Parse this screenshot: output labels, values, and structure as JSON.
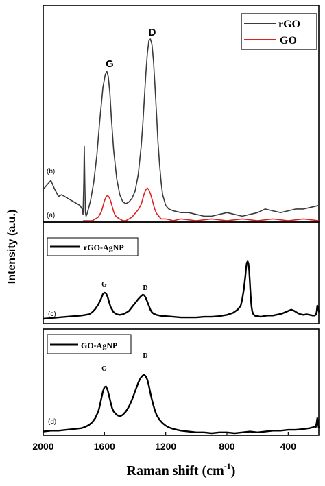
{
  "chart_data": [
    {
      "type": "line",
      "panel": "top",
      "xlim": [
        2000,
        200
      ],
      "xreversed": true,
      "legend": {
        "placement": "top-right",
        "entries": [
          "rGO",
          "GO"
        ]
      },
      "peak_labels": [
        "G",
        "D"
      ],
      "curve_labels": [
        "(b)",
        "(a)"
      ],
      "series": [
        {
          "name": "rGO",
          "color": "#3a3a3a",
          "x": [
            2000,
            1970,
            1950,
            1930,
            1900,
            1880,
            1860,
            1840,
            1820,
            1800,
            1780,
            1760,
            1745,
            1740,
            1735,
            1732,
            1728,
            1724,
            1720,
            1715,
            1705,
            1690,
            1670,
            1650,
            1630,
            1610,
            1595,
            1585,
            1575,
            1565,
            1555,
            1540,
            1520,
            1500,
            1480,
            1460,
            1440,
            1420,
            1400,
            1380,
            1360,
            1350,
            1340,
            1330,
            1320,
            1310,
            1300,
            1290,
            1280,
            1270,
            1260,
            1250,
            1240,
            1230,
            1220,
            1200,
            1180,
            1150,
            1100,
            1050,
            1000,
            950,
            900,
            850,
            800,
            750,
            700,
            650,
            600,
            550,
            500,
            450,
            400,
            350,
            300,
            250,
            200
          ],
          "y": [
            0.16,
            0.19,
            0.21,
            0.17,
            0.12,
            0.13,
            0.12,
            0.11,
            0.1,
            0.09,
            0.08,
            0.07,
            0.05,
            0.02,
            0.2,
            0.4,
            0.2,
            0.03,
            0.01,
            0.02,
            0.05,
            0.1,
            0.2,
            0.35,
            0.55,
            0.73,
            0.8,
            0.82,
            0.79,
            0.7,
            0.56,
            0.38,
            0.22,
            0.13,
            0.09,
            0.08,
            0.09,
            0.11,
            0.15,
            0.24,
            0.4,
            0.52,
            0.66,
            0.8,
            0.92,
            0.99,
            1.0,
            0.97,
            0.88,
            0.74,
            0.58,
            0.42,
            0.3,
            0.2,
            0.13,
            0.07,
            0.05,
            0.04,
            0.03,
            0.03,
            0.02,
            0.01,
            0.01,
            0.02,
            0.03,
            0.02,
            0.01,
            0.02,
            0.03,
            0.05,
            0.04,
            0.03,
            0.04,
            0.05,
            0.05,
            0.06,
            0.07
          ]
        },
        {
          "name": "GO",
          "color": "#e02020",
          "x": [
            1740,
            1700,
            1680,
            1660,
            1640,
            1620,
            1610,
            1600,
            1590,
            1580,
            1570,
            1560,
            1550,
            1540,
            1530,
            1520,
            1500,
            1480,
            1460,
            1440,
            1420,
            1400,
            1380,
            1360,
            1350,
            1340,
            1330,
            1320,
            1310,
            1300,
            1290,
            1280,
            1270,
            1260,
            1250,
            1240,
            1230,
            1220,
            1200,
            1150,
            1100,
            1000,
            900,
            800,
            700,
            600,
            500,
            400,
            300,
            200
          ],
          "y": [
            0.0,
            0.0,
            0.0,
            0.01,
            0.02,
            0.05,
            0.08,
            0.11,
            0.13,
            0.14,
            0.13,
            0.11,
            0.08,
            0.05,
            0.03,
            0.02,
            0.01,
            0.0,
            0.0,
            0.01,
            0.02,
            0.04,
            0.06,
            0.09,
            0.12,
            0.15,
            0.17,
            0.18,
            0.17,
            0.15,
            0.12,
            0.09,
            0.06,
            0.04,
            0.03,
            0.02,
            0.01,
            0.01,
            0.01,
            0.0,
            0.01,
            0.0,
            0.01,
            0.0,
            0.01,
            0.0,
            0.01,
            0.0,
            0.01,
            0.0
          ]
        }
      ]
    },
    {
      "type": "line",
      "panel": "middle",
      "xlim": [
        2000,
        200
      ],
      "xreversed": true,
      "legend": {
        "placement": "top-left",
        "entries": [
          "rGO-AgNP"
        ]
      },
      "peak_labels": [
        "G",
        "D"
      ],
      "curve_labels": [
        "(c)"
      ],
      "series": [
        {
          "name": "rGO-AgNP",
          "color": "#000000",
          "x": [
            2000,
            1950,
            1900,
            1850,
            1800,
            1750,
            1700,
            1680,
            1660,
            1640,
            1620,
            1610,
            1600,
            1590,
            1580,
            1570,
            1560,
            1540,
            1520,
            1500,
            1480,
            1460,
            1440,
            1420,
            1400,
            1380,
            1360,
            1350,
            1340,
            1330,
            1320,
            1310,
            1300,
            1290,
            1280,
            1260,
            1240,
            1220,
            1200,
            1150,
            1100,
            1050,
            1000,
            950,
            900,
            850,
            800,
            760,
            730,
            710,
            700,
            690,
            680,
            675,
            670,
            665,
            660,
            655,
            650,
            645,
            640,
            635,
            630,
            620,
            610,
            600,
            580,
            560,
            540,
            520,
            500,
            480,
            460,
            440,
            420,
            400,
            380,
            360,
            340,
            320,
            300,
            280,
            260,
            240,
            230,
            220,
            215,
            210,
            205,
            200
          ],
          "y": [
            0.0,
            0.01,
            0.02,
            0.03,
            0.04,
            0.05,
            0.07,
            0.1,
            0.15,
            0.22,
            0.32,
            0.38,
            0.4,
            0.39,
            0.34,
            0.26,
            0.18,
            0.1,
            0.07,
            0.06,
            0.07,
            0.09,
            0.12,
            0.18,
            0.24,
            0.3,
            0.35,
            0.37,
            0.36,
            0.32,
            0.26,
            0.2,
            0.14,
            0.1,
            0.08,
            0.06,
            0.05,
            0.04,
            0.04,
            0.03,
            0.02,
            0.02,
            0.02,
            0.03,
            0.03,
            0.04,
            0.06,
            0.09,
            0.14,
            0.2,
            0.3,
            0.45,
            0.65,
            0.78,
            0.86,
            0.88,
            0.85,
            0.75,
            0.55,
            0.35,
            0.2,
            0.12,
            0.08,
            0.05,
            0.04,
            0.04,
            0.03,
            0.04,
            0.05,
            0.05,
            0.05,
            0.06,
            0.07,
            0.08,
            0.1,
            0.12,
            0.14,
            0.12,
            0.09,
            0.07,
            0.06,
            0.07,
            0.06,
            0.05,
            0.05,
            0.06,
            0.1,
            0.2,
            0.18,
            0.1
          ]
        }
      ]
    },
    {
      "type": "line",
      "panel": "bottom",
      "xlim": [
        2000,
        200
      ],
      "xreversed": true,
      "xticks": [
        2000,
        1600,
        1200,
        800,
        400
      ],
      "xlabel": "Raman shift (cm-1)",
      "legend": {
        "placement": "top-left",
        "entries": [
          "GO-AgNP"
        ]
      },
      "peak_labels": [
        "G",
        "D"
      ],
      "curve_labels": [
        "(d)"
      ],
      "series": [
        {
          "name": "GO-AgNP",
          "color": "#000000",
          "x": [
            2000,
            1950,
            1900,
            1850,
            1800,
            1750,
            1720,
            1700,
            1680,
            1660,
            1640,
            1630,
            1620,
            1610,
            1600,
            1590,
            1580,
            1570,
            1560,
            1550,
            1540,
            1520,
            1500,
            1480,
            1460,
            1440,
            1420,
            1400,
            1380,
            1370,
            1360,
            1350,
            1340,
            1330,
            1320,
            1310,
            1300,
            1290,
            1280,
            1270,
            1260,
            1240,
            1220,
            1200,
            1180,
            1150,
            1100,
            1050,
            1000,
            950,
            900,
            850,
            800,
            750,
            700,
            650,
            600,
            550,
            500,
            450,
            400,
            350,
            300,
            260,
            240,
            230,
            220,
            215,
            210,
            205,
            200
          ],
          "y": [
            0.02,
            0.03,
            0.03,
            0.04,
            0.05,
            0.06,
            0.08,
            0.1,
            0.13,
            0.18,
            0.26,
            0.33,
            0.42,
            0.5,
            0.55,
            0.56,
            0.52,
            0.45,
            0.37,
            0.3,
            0.26,
            0.22,
            0.2,
            0.22,
            0.26,
            0.32,
            0.4,
            0.5,
            0.6,
            0.64,
            0.67,
            0.69,
            0.7,
            0.68,
            0.64,
            0.57,
            0.48,
            0.4,
            0.33,
            0.27,
            0.22,
            0.16,
            0.12,
            0.09,
            0.07,
            0.05,
            0.03,
            0.02,
            0.01,
            0.01,
            0.0,
            0.01,
            0.01,
            0.0,
            0.01,
            0.02,
            0.01,
            0.02,
            0.03,
            0.03,
            0.04,
            0.04,
            0.05,
            0.06,
            0.07,
            0.08,
            0.07,
            0.12,
            0.18,
            0.12,
            0.06
          ]
        }
      ]
    }
  ],
  "ylabel": "Intensity (a.u.)",
  "xlabel_main": "Raman shift (cm",
  "xlabel_sup": "-1",
  "xlabel_close": ")",
  "xtick_labels": [
    "2000",
    "1600",
    "1200",
    "800",
    "400"
  ],
  "top_legend": [
    "rGO",
    "GO"
  ],
  "top_peaks": [
    "G",
    "D"
  ],
  "top_curves": [
    "(b)",
    "(a)"
  ],
  "mid_legend": "rGO-AgNP",
  "mid_peaks": [
    "G",
    "D"
  ],
  "mid_curve": "(c)",
  "bot_legend": "GO-AgNP",
  "bot_peaks": [
    "G",
    "D"
  ],
  "bot_curve": "(d)"
}
